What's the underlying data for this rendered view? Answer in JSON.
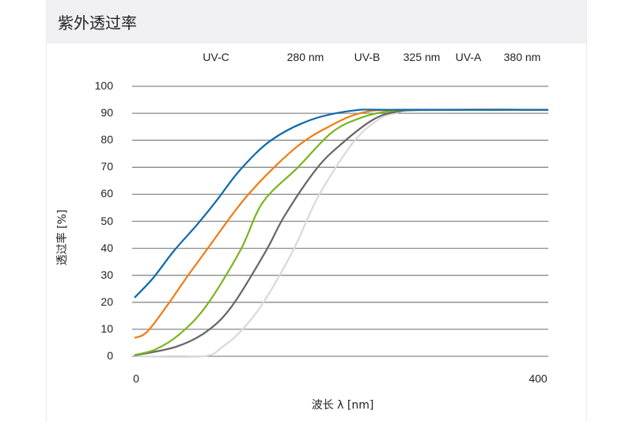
{
  "header": {
    "title": "紫外透过率"
  },
  "chart_data": {
    "type": "line",
    "title": "",
    "xlabel": "波长 λ [nm]",
    "ylabel": "透过率 [%]",
    "xlim": [
      0,
      400
    ],
    "ylim": [
      0,
      100
    ],
    "x_ticks": [
      "0",
      "400"
    ],
    "y_ticks": [
      "100",
      "90",
      "80",
      "70",
      "60",
      "50",
      "40",
      "30",
      "20",
      "10",
      "0"
    ],
    "grid": "horizontal",
    "band_labels": [
      "UV-C",
      "280 nm",
      "UV-B",
      "325 nm",
      "UV-A",
      "380 nm"
    ],
    "series": [
      {
        "color": "#0a6aad",
        "points": [
          [
            0,
            21.7
          ],
          [
            18,
            29
          ],
          [
            38,
            39
          ],
          [
            61,
            49
          ],
          [
            80,
            58
          ],
          [
            102,
            69
          ],
          [
            132,
            80
          ],
          [
            170,
            87.5
          ],
          [
            211,
            91
          ],
          [
            250,
            91.3
          ],
          [
            400,
            91.3
          ]
        ]
      },
      {
        "color": "#ef7d0f",
        "points": [
          [
            0,
            6.8
          ],
          [
            12,
            9
          ],
          [
            31,
            18.5
          ],
          [
            50,
            29
          ],
          [
            69,
            39
          ],
          [
            109,
            59.5
          ],
          [
            155,
            77
          ],
          [
            190,
            85.5
          ],
          [
            221,
            90.3
          ],
          [
            260,
            91.3
          ],
          [
            400,
            91.3
          ]
        ]
      },
      {
        "color": "#7ab51d",
        "points": [
          [
            0,
            0.5
          ],
          [
            20,
            2.5
          ],
          [
            43,
            8
          ],
          [
            69,
            18.5
          ],
          [
            102,
            39
          ],
          [
            124,
            57
          ],
          [
            158,
            70
          ],
          [
            191,
            83
          ],
          [
            220,
            88.5
          ],
          [
            247,
            90.8
          ],
          [
            280,
            91.3
          ],
          [
            400,
            91.3
          ]
        ]
      },
      {
        "color": "#666666",
        "points": [
          [
            0,
            0.3
          ],
          [
            40,
            3.5
          ],
          [
            69,
            9
          ],
          [
            94,
            18.5
          ],
          [
            127,
            39
          ],
          [
            145,
            52
          ],
          [
            176,
            69.5
          ],
          [
            201,
            79
          ],
          [
            230,
            87.5
          ],
          [
            252,
            90.5
          ],
          [
            285,
            91.3
          ],
          [
            400,
            91.3
          ]
        ]
      },
      {
        "color": "#d9d9d9",
        "points": [
          [
            0,
            0
          ],
          [
            66,
            0
          ],
          [
            85,
            3.5
          ],
          [
            102,
            9
          ],
          [
            124,
            19.6
          ],
          [
            153,
            39
          ],
          [
            178,
            59.5
          ],
          [
            211,
            79
          ],
          [
            235,
            87.5
          ],
          [
            252,
            90
          ],
          [
            275,
            91
          ],
          [
            400,
            91.3
          ]
        ]
      }
    ]
  }
}
